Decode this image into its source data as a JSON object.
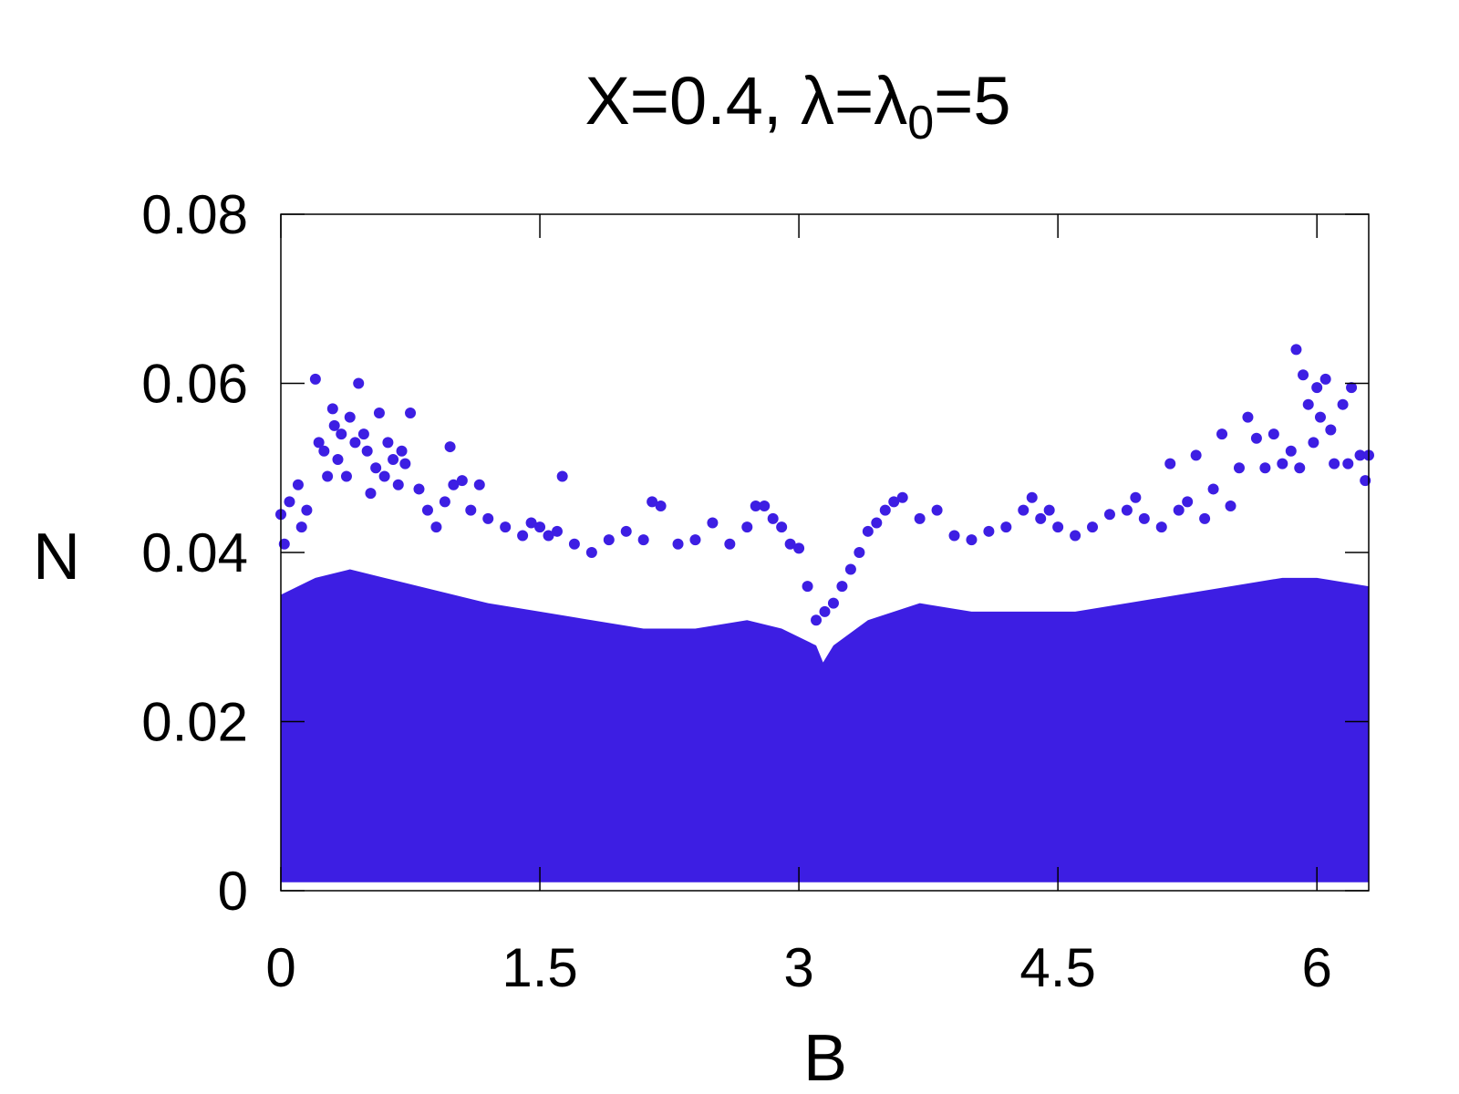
{
  "chart_data": {
    "type": "scatter",
    "title": "X=0.4, λ=λ",
    "title_subscript": "0",
    "title_suffix": "=5",
    "xlabel": "B",
    "ylabel": "N",
    "xlim": [
      0,
      6.3
    ],
    "ylim": [
      0,
      0.08
    ],
    "xticks": [
      0,
      1.5,
      3,
      4.5,
      6
    ],
    "xtick_labels": [
      "0",
      "1.5",
      "3",
      "4.5",
      "6"
    ],
    "yticks": [
      0,
      0.02,
      0.04,
      0.06,
      0.08
    ],
    "ytick_labels": [
      "0",
      "0.02",
      "0.04",
      "0.06",
      "0.08"
    ],
    "grid": false,
    "marker_color": "#3d1ee3",
    "series": [
      {
        "dense_band": {
          "y_min": 0.001,
          "envelope": {
            "x": [
              0.0,
              0.2,
              0.4,
              0.6,
              0.8,
              1.0,
              1.2,
              1.5,
              1.8,
              2.1,
              2.4,
              2.7,
              2.9,
              3.1,
              3.14,
              3.2,
              3.4,
              3.7,
              4.0,
              4.3,
              4.6,
              4.9,
              5.2,
              5.5,
              5.8,
              6.0,
              6.3
            ],
            "y": [
              0.035,
              0.037,
              0.038,
              0.037,
              0.036,
              0.035,
              0.034,
              0.033,
              0.032,
              0.031,
              0.031,
              0.032,
              0.031,
              0.029,
              0.027,
              0.029,
              0.032,
              0.034,
              0.033,
              0.033,
              0.033,
              0.034,
              0.035,
              0.036,
              0.037,
              0.037,
              0.036
            ]
          }
        },
        "points": [
          [
            0.0,
            0.0445
          ],
          [
            0.02,
            0.041
          ],
          [
            0.05,
            0.046
          ],
          [
            0.1,
            0.048
          ],
          [
            0.12,
            0.043
          ],
          [
            0.15,
            0.045
          ],
          [
            0.2,
            0.0605
          ],
          [
            0.22,
            0.053
          ],
          [
            0.25,
            0.052
          ],
          [
            0.27,
            0.049
          ],
          [
            0.3,
            0.057
          ],
          [
            0.31,
            0.055
          ],
          [
            0.33,
            0.051
          ],
          [
            0.35,
            0.054
          ],
          [
            0.38,
            0.049
          ],
          [
            0.4,
            0.056
          ],
          [
            0.43,
            0.053
          ],
          [
            0.45,
            0.06
          ],
          [
            0.48,
            0.054
          ],
          [
            0.5,
            0.052
          ],
          [
            0.52,
            0.047
          ],
          [
            0.55,
            0.05
          ],
          [
            0.57,
            0.0565
          ],
          [
            0.6,
            0.049
          ],
          [
            0.62,
            0.053
          ],
          [
            0.65,
            0.051
          ],
          [
            0.68,
            0.048
          ],
          [
            0.7,
            0.052
          ],
          [
            0.72,
            0.0505
          ],
          [
            0.75,
            0.0565
          ],
          [
            0.8,
            0.0475
          ],
          [
            0.85,
            0.045
          ],
          [
            0.9,
            0.043
          ],
          [
            0.95,
            0.046
          ],
          [
            0.98,
            0.0525
          ],
          [
            1.0,
            0.048
          ],
          [
            1.05,
            0.0485
          ],
          [
            1.1,
            0.045
          ],
          [
            1.15,
            0.048
          ],
          [
            1.2,
            0.044
          ],
          [
            1.3,
            0.043
          ],
          [
            1.4,
            0.042
          ],
          [
            1.45,
            0.0435
          ],
          [
            1.5,
            0.043
          ],
          [
            1.55,
            0.042
          ],
          [
            1.6,
            0.0425
          ],
          [
            1.63,
            0.049
          ],
          [
            1.7,
            0.041
          ],
          [
            1.8,
            0.04
          ],
          [
            1.9,
            0.0415
          ],
          [
            2.0,
            0.0425
          ],
          [
            2.1,
            0.0415
          ],
          [
            2.15,
            0.046
          ],
          [
            2.2,
            0.0455
          ],
          [
            2.3,
            0.041
          ],
          [
            2.4,
            0.0415
          ],
          [
            2.5,
            0.0435
          ],
          [
            2.6,
            0.041
          ],
          [
            2.7,
            0.043
          ],
          [
            2.75,
            0.0455
          ],
          [
            2.8,
            0.0455
          ],
          [
            2.85,
            0.044
          ],
          [
            2.9,
            0.043
          ],
          [
            2.95,
            0.041
          ],
          [
            3.0,
            0.0405
          ],
          [
            3.05,
            0.036
          ],
          [
            3.1,
            0.032
          ],
          [
            3.15,
            0.033
          ],
          [
            3.2,
            0.034
          ],
          [
            3.25,
            0.036
          ],
          [
            3.3,
            0.038
          ],
          [
            3.35,
            0.04
          ],
          [
            3.4,
            0.0425
          ],
          [
            3.45,
            0.0435
          ],
          [
            3.5,
            0.045
          ],
          [
            3.55,
            0.046
          ],
          [
            3.6,
            0.0465
          ],
          [
            3.7,
            0.044
          ],
          [
            3.8,
            0.045
          ],
          [
            3.9,
            0.042
          ],
          [
            4.0,
            0.0415
          ],
          [
            4.1,
            0.0425
          ],
          [
            4.2,
            0.043
          ],
          [
            4.3,
            0.045
          ],
          [
            4.35,
            0.0465
          ],
          [
            4.4,
            0.044
          ],
          [
            4.45,
            0.045
          ],
          [
            4.5,
            0.043
          ],
          [
            4.6,
            0.042
          ],
          [
            4.7,
            0.043
          ],
          [
            4.8,
            0.0445
          ],
          [
            4.9,
            0.045
          ],
          [
            4.95,
            0.0465
          ],
          [
            5.0,
            0.044
          ],
          [
            5.1,
            0.043
          ],
          [
            5.15,
            0.0505
          ],
          [
            5.2,
            0.045
          ],
          [
            5.25,
            0.046
          ],
          [
            5.3,
            0.0515
          ],
          [
            5.35,
            0.044
          ],
          [
            5.4,
            0.0475
          ],
          [
            5.45,
            0.054
          ],
          [
            5.5,
            0.0455
          ],
          [
            5.55,
            0.05
          ],
          [
            5.6,
            0.056
          ],
          [
            5.65,
            0.0535
          ],
          [
            5.7,
            0.05
          ],
          [
            5.75,
            0.054
          ],
          [
            5.8,
            0.0505
          ],
          [
            5.85,
            0.052
          ],
          [
            5.88,
            0.064
          ],
          [
            5.9,
            0.05
          ],
          [
            5.92,
            0.061
          ],
          [
            5.95,
            0.0575
          ],
          [
            5.98,
            0.053
          ],
          [
            6.0,
            0.0595
          ],
          [
            6.02,
            0.056
          ],
          [
            6.05,
            0.0605
          ],
          [
            6.08,
            0.0545
          ],
          [
            6.1,
            0.0505
          ],
          [
            6.15,
            0.0575
          ],
          [
            6.18,
            0.0505
          ],
          [
            6.2,
            0.0595
          ],
          [
            6.25,
            0.0515
          ],
          [
            6.28,
            0.0485
          ],
          [
            6.3,
            0.0515
          ]
        ]
      }
    ]
  }
}
